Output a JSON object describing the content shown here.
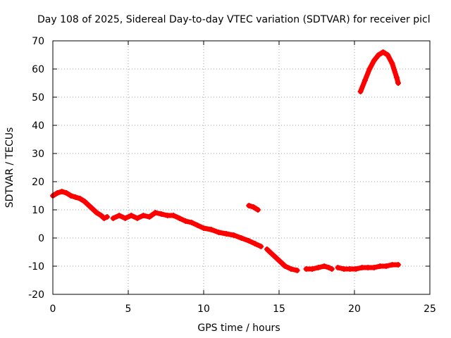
{
  "chart_data": {
    "type": "scatter",
    "title": "Day 108 of 2025, Sidereal Day-to-day VTEC variation (SDTVAR) for receiver picl",
    "xlabel": "GPS time / hours",
    "ylabel": "SDTVAR / TECUs",
    "xlim": [
      0,
      25
    ],
    "ylim": [
      -20,
      70
    ],
    "xticks": [
      0,
      5,
      10,
      15,
      20,
      25
    ],
    "yticks": [
      -20,
      -10,
      0,
      10,
      20,
      30,
      40,
      50,
      60,
      70
    ],
    "grid": true,
    "series": [
      {
        "name": "SDTVAR segment 1",
        "color": "#ff0000",
        "points": [
          [
            0.0,
            15
          ],
          [
            0.3,
            16
          ],
          [
            0.6,
            16.5
          ],
          [
            0.9,
            16
          ],
          [
            1.2,
            15
          ],
          [
            1.5,
            14.5
          ],
          [
            1.8,
            14
          ],
          [
            2.1,
            13
          ],
          [
            2.5,
            11
          ],
          [
            2.9,
            9
          ],
          [
            3.2,
            8
          ],
          [
            3.4,
            7
          ],
          [
            3.6,
            7.5
          ]
        ]
      },
      {
        "name": "SDTVAR segment 2",
        "color": "#ff0000",
        "points": [
          [
            4.0,
            7
          ],
          [
            4.4,
            8
          ],
          [
            4.8,
            7
          ],
          [
            5.2,
            8
          ],
          [
            5.6,
            7
          ],
          [
            6.0,
            8
          ],
          [
            6.4,
            7.5
          ],
          [
            6.8,
            9
          ],
          [
            7.2,
            8.5
          ],
          [
            7.6,
            8
          ],
          [
            8.0,
            8
          ],
          [
            8.4,
            7
          ],
          [
            8.8,
            6
          ],
          [
            9.2,
            5.5
          ],
          [
            9.6,
            4.5
          ],
          [
            10.0,
            3.5
          ],
          [
            10.5,
            3
          ],
          [
            11.0,
            2
          ],
          [
            11.5,
            1.5
          ],
          [
            12.0,
            1
          ],
          [
            12.5,
            0
          ],
          [
            13.0,
            -1
          ],
          [
            13.4,
            -2
          ],
          [
            13.8,
            -3
          ]
        ]
      },
      {
        "name": "SDTVAR segment 3",
        "color": "#ff0000",
        "points": [
          [
            13.0,
            11.5
          ],
          [
            13.3,
            11
          ],
          [
            13.6,
            10
          ]
        ]
      },
      {
        "name": "SDTVAR segment 4",
        "color": "#ff0000",
        "points": [
          [
            14.2,
            -4
          ],
          [
            14.6,
            -6
          ],
          [
            15.0,
            -8
          ],
          [
            15.4,
            -10
          ],
          [
            15.8,
            -11
          ],
          [
            16.2,
            -11.5
          ]
        ]
      },
      {
        "name": "SDTVAR segment 5",
        "color": "#ff0000",
        "points": [
          [
            16.8,
            -11
          ],
          [
            17.2,
            -11
          ],
          [
            17.6,
            -10.5
          ],
          [
            18.0,
            -10
          ],
          [
            18.3,
            -10.5
          ],
          [
            18.5,
            -11
          ]
        ]
      },
      {
        "name": "SDTVAR segment 6",
        "color": "#ff0000",
        "points": [
          [
            18.9,
            -10.5
          ],
          [
            19.3,
            -11
          ],
          [
            19.7,
            -11
          ],
          [
            20.1,
            -11
          ],
          [
            20.5,
            -10.5
          ],
          [
            20.9,
            -10.5
          ],
          [
            21.3,
            -10.5
          ],
          [
            21.7,
            -10
          ],
          [
            22.1,
            -10
          ],
          [
            22.5,
            -9.5
          ],
          [
            22.9,
            -9.5
          ]
        ]
      },
      {
        "name": "SDTVAR segment 7",
        "color": "#ff0000",
        "points": [
          [
            20.4,
            52
          ],
          [
            20.7,
            56
          ],
          [
            21.0,
            60
          ],
          [
            21.3,
            63
          ],
          [
            21.6,
            65
          ],
          [
            21.9,
            66
          ],
          [
            22.2,
            65
          ],
          [
            22.5,
            62
          ],
          [
            22.8,
            57
          ],
          [
            22.9,
            55
          ]
        ]
      }
    ]
  }
}
